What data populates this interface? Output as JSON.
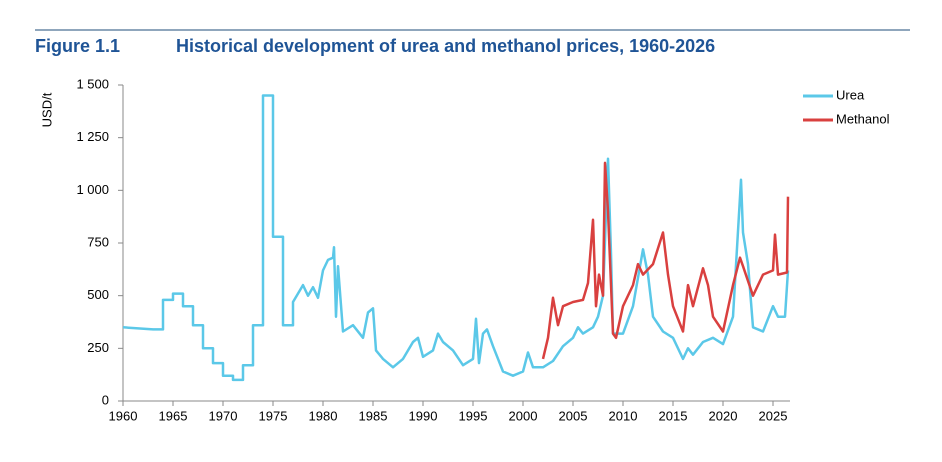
{
  "chart_data": {
    "type": "line",
    "figure_label": "Figure 1.1",
    "title": "Historical development of urea and methanol prices, 1960-2026",
    "ylabel": "USD/t",
    "xlim": [
      1960,
      2026.7
    ],
    "xticks": [
      1960,
      1965,
      1970,
      1975,
      1980,
      1985,
      1990,
      1995,
      2000,
      2005,
      2010,
      2015,
      2020,
      2025
    ],
    "ylim": [
      0,
      1500
    ],
    "yticks": [
      0,
      250,
      500,
      750,
      {
        "value": 1000,
        "label": "1 000"
      },
      {
        "value": 1250,
        "label": "1 250"
      },
      {
        "value": 1500,
        "label": "1 500"
      }
    ],
    "legend": "top-right",
    "series": [
      {
        "name": "Urea",
        "color": "#5bc8e8",
        "x": [
          1960,
          1963,
          1964,
          1964,
          1965,
          1965,
          1966,
          1966,
          1967,
          1967,
          1968,
          1968,
          1969,
          1969,
          1970,
          1970,
          1971,
          1971,
          1972,
          1972,
          1973,
          1973,
          1974,
          1974,
          1975,
          1975,
          1976,
          1976,
          1977,
          1977,
          1978,
          1978.5,
          1979,
          1979.5,
          1980,
          1980.5,
          1981,
          1981.1,
          1981.3,
          1981.5,
          1982,
          1983,
          1984,
          1984.5,
          1985,
          1985.3,
          1986,
          1987,
          1988,
          1989,
          1989.5,
          1990,
          1991,
          1991.5,
          1992,
          1993,
          1994,
          1995,
          1995.3,
          1995.6,
          1996,
          1996.4,
          1997,
          1998,
          1999,
          2000,
          2000.5,
          2001,
          2002,
          2003,
          2004,
          2005,
          2005.5,
          2006,
          2007,
          2007.5,
          2008,
          2008.5,
          2008.8,
          2009,
          2010,
          2011,
          2012,
          2012.5,
          2013,
          2014,
          2015,
          2016,
          2016.5,
          2017,
          2018,
          2019,
          2020,
          2021,
          2021.8,
          2022,
          2022.5,
          2023,
          2024,
          2025,
          2025.5,
          2026.2,
          2026.5
        ],
        "values": [
          350,
          340,
          340,
          480,
          480,
          510,
          510,
          450,
          450,
          360,
          360,
          250,
          250,
          180,
          180,
          120,
          120,
          100,
          100,
          170,
          170,
          360,
          360,
          1450,
          1450,
          780,
          780,
          360,
          360,
          470,
          550,
          500,
          540,
          490,
          620,
          670,
          680,
          730,
          400,
          640,
          330,
          360,
          300,
          420,
          440,
          240,
          200,
          160,
          200,
          280,
          300,
          210,
          240,
          320,
          280,
          240,
          170,
          200,
          390,
          180,
          320,
          340,
          260,
          140,
          120,
          140,
          230,
          160,
          160,
          190,
          260,
          300,
          350,
          320,
          350,
          400,
          500,
          1150,
          700,
          320,
          320,
          450,
          720,
          600,
          400,
          330,
          300,
          200,
          250,
          220,
          280,
          300,
          270,
          400,
          1050,
          800,
          650,
          350,
          330,
          450,
          400,
          400,
          620
        ]
      },
      {
        "name": "Methanol",
        "color": "#d9403f",
        "x": [
          2002,
          2002.5,
          2003,
          2003.5,
          2004,
          2005,
          2006,
          2006.5,
          2007,
          2007.3,
          2007.6,
          2008,
          2008.2,
          2008.5,
          2009,
          2009.3,
          2010,
          2011,
          2011.5,
          2012,
          2013,
          2014,
          2014.5,
          2015,
          2016,
          2016.5,
          2017,
          2018,
          2018.5,
          2019,
          2020,
          2021,
          2021.7,
          2022,
          2023,
          2024,
          2025,
          2025.2,
          2025.5,
          2026.4,
          2026.5
        ],
        "values": [
          200,
          300,
          490,
          360,
          450,
          470,
          480,
          560,
          860,
          450,
          600,
          500,
          1130,
          900,
          320,
          300,
          450,
          550,
          650,
          600,
          650,
          800,
          600,
          450,
          330,
          550,
          450,
          630,
          550,
          400,
          330,
          550,
          680,
          640,
          500,
          600,
          620,
          790,
          600,
          610,
          970
        ]
      }
    ]
  }
}
